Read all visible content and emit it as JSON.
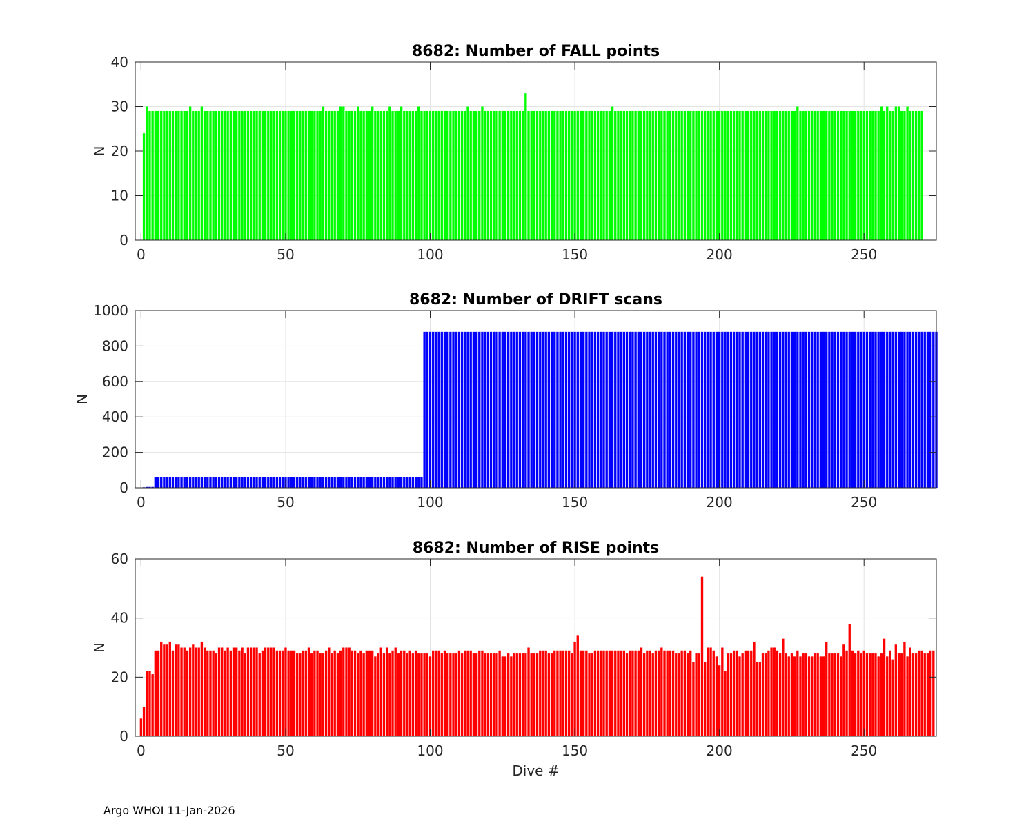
{
  "footer": "Argo WHOI 11-Jan-2026",
  "chart_data": [
    {
      "type": "bar",
      "title": "8682: Number of FALL points",
      "xlabel": "",
      "ylabel": "N",
      "xlim": [
        -2,
        275
      ],
      "ylim": [
        0,
        40
      ],
      "xticks": [
        0,
        50,
        100,
        150,
        200,
        250
      ],
      "yticks": [
        0,
        10,
        20,
        30,
        40
      ],
      "grid": true,
      "color": "#00ff00",
      "x_start": 1,
      "values": [
        24,
        30,
        29,
        29,
        29,
        29,
        29,
        29,
        29,
        29,
        29,
        29,
        29,
        29,
        29,
        29,
        30,
        29,
        29,
        29,
        30,
        29,
        29,
        29,
        29,
        29,
        29,
        29,
        29,
        29,
        29,
        29,
        29,
        29,
        29,
        29,
        29,
        29,
        29,
        29,
        29,
        29,
        29,
        29,
        29,
        29,
        29,
        29,
        29,
        29,
        29,
        29,
        29,
        29,
        29,
        29,
        29,
        29,
        29,
        29,
        29,
        29,
        30,
        29,
        29,
        29,
        29,
        29,
        30,
        30,
        29,
        29,
        29,
        29,
        30,
        29,
        29,
        29,
        29,
        30,
        29,
        29,
        29,
        29,
        29,
        30,
        29,
        29,
        29,
        30,
        29,
        29,
        29,
        29,
        29,
        30,
        29,
        29,
        29,
        29,
        29,
        29,
        29,
        29,
        29,
        29,
        29,
        29,
        29,
        29,
        29,
        29,
        30,
        29,
        29,
        29,
        29,
        30,
        29,
        29,
        29,
        29,
        29,
        29,
        29,
        29,
        29,
        29,
        29,
        29,
        29,
        29,
        33,
        29,
        29,
        29,
        29,
        29,
        29,
        29,
        29,
        29,
        29,
        29,
        29,
        29,
        29,
        29,
        29,
        29,
        29,
        29,
        29,
        29,
        29,
        29,
        29,
        29,
        29,
        29,
        29,
        29,
        30,
        29,
        29,
        29,
        29,
        29,
        29,
        29,
        29,
        29,
        29,
        29,
        29,
        29,
        29,
        29,
        29,
        29,
        29,
        29,
        29,
        29,
        29,
        29,
        29,
        29,
        29,
        29,
        29,
        29,
        29,
        29,
        29,
        29,
        29,
        29,
        29,
        29,
        29,
        29,
        29,
        29,
        29,
        29,
        29,
        29,
        29,
        29,
        29,
        29,
        29,
        29,
        29,
        29,
        29,
        29,
        29,
        29,
        29,
        29,
        29,
        29,
        29,
        29,
        30,
        29,
        29,
        29,
        29,
        29,
        29,
        29,
        29,
        29,
        29,
        29,
        29,
        29,
        29,
        29,
        29,
        29,
        29,
        29,
        29,
        29,
        29,
        29,
        29,
        29,
        29,
        29,
        29,
        30,
        29,
        30,
        29,
        29,
        30,
        30,
        29,
        29,
        30,
        29,
        29,
        29,
        29,
        29
      ]
    },
    {
      "type": "bar",
      "title": "8682: Number of DRIFT scans",
      "xlabel": "",
      "ylabel": "N",
      "xlim": [
        -2,
        275
      ],
      "ylim": [
        0,
        1000
      ],
      "xticks": [
        0,
        50,
        100,
        150,
        200,
        250
      ],
      "yticks": [
        0,
        200,
        400,
        600,
        800,
        1000
      ],
      "grid": true,
      "color": "#0000ff",
      "x_start": 1,
      "segments": [
        {
          "from": 1,
          "to": 1,
          "value": 3
        },
        {
          "from": 2,
          "to": 4,
          "value": 5
        },
        {
          "from": 5,
          "to": 97,
          "value": 60
        },
        {
          "from": 98,
          "to": 275,
          "value": 880
        }
      ]
    },
    {
      "type": "bar",
      "title": "8682: Number of RISE points",
      "xlabel": "Dive #",
      "ylabel": "N",
      "xlim": [
        -2,
        275
      ],
      "ylim": [
        0,
        60
      ],
      "xticks": [
        0,
        50,
        100,
        150,
        200,
        250
      ],
      "yticks": [
        0,
        20,
        40,
        60
      ],
      "grid": true,
      "color": "#ff0000",
      "x_start": 0,
      "values": [
        6,
        10,
        22,
        22,
        21,
        29,
        29,
        32,
        31,
        31,
        32,
        29,
        31,
        31,
        30,
        30,
        29,
        30,
        31,
        30,
        30,
        32,
        30,
        29,
        29,
        29,
        28,
        30,
        30,
        29,
        30,
        29,
        30,
        30,
        29,
        30,
        28,
        30,
        30,
        30,
        30,
        28,
        29,
        30,
        30,
        30,
        30,
        29,
        29,
        29,
        30,
        29,
        29,
        29,
        28,
        28,
        29,
        29,
        30,
        28,
        29,
        29,
        28,
        28,
        29,
        30,
        28,
        29,
        28,
        29,
        30,
        30,
        30,
        29,
        29,
        28,
        29,
        28,
        29,
        29,
        29,
        27,
        28,
        30,
        28,
        30,
        28,
        29,
        30,
        28,
        29,
        29,
        28,
        29,
        28,
        29,
        28,
        28,
        28,
        28,
        27,
        29,
        29,
        29,
        28,
        29,
        28,
        28,
        28,
        28,
        29,
        28,
        29,
        29,
        29,
        28,
        28,
        29,
        29,
        28,
        28,
        28,
        28,
        28,
        29,
        27,
        27,
        28,
        27,
        28,
        28,
        28,
        28,
        28,
        30,
        28,
        28,
        28,
        29,
        29,
        29,
        28,
        28,
        29,
        29,
        29,
        29,
        29,
        29,
        28,
        32,
        34,
        29,
        29,
        29,
        28,
        28,
        29,
        29,
        29,
        29,
        29,
        29,
        29,
        29,
        29,
        29,
        29,
        28,
        29,
        29,
        29,
        29,
        30,
        28,
        29,
        29,
        28,
        29,
        29,
        30,
        29,
        29,
        29,
        29,
        28,
        28,
        29,
        29,
        28,
        29,
        25,
        28,
        28,
        54,
        25,
        30,
        30,
        29,
        27,
        24,
        30,
        22,
        28,
        28,
        29,
        29,
        27,
        28,
        29,
        29,
        29,
        32,
        25,
        25,
        28,
        28,
        29,
        30,
        30,
        29,
        28,
        33,
        28,
        27,
        28,
        27,
        29,
        27,
        28,
        28,
        27,
        27,
        28,
        28,
        27,
        27,
        32,
        28,
        28,
        28,
        28,
        27,
        31,
        29,
        38,
        29,
        28,
        29,
        28,
        29,
        28,
        28,
        28,
        28,
        27,
        28,
        33,
        27,
        29,
        26,
        31,
        28,
        28,
        32,
        27,
        30,
        28,
        28,
        29,
        29,
        28,
        28,
        29,
        29
      ]
    }
  ]
}
